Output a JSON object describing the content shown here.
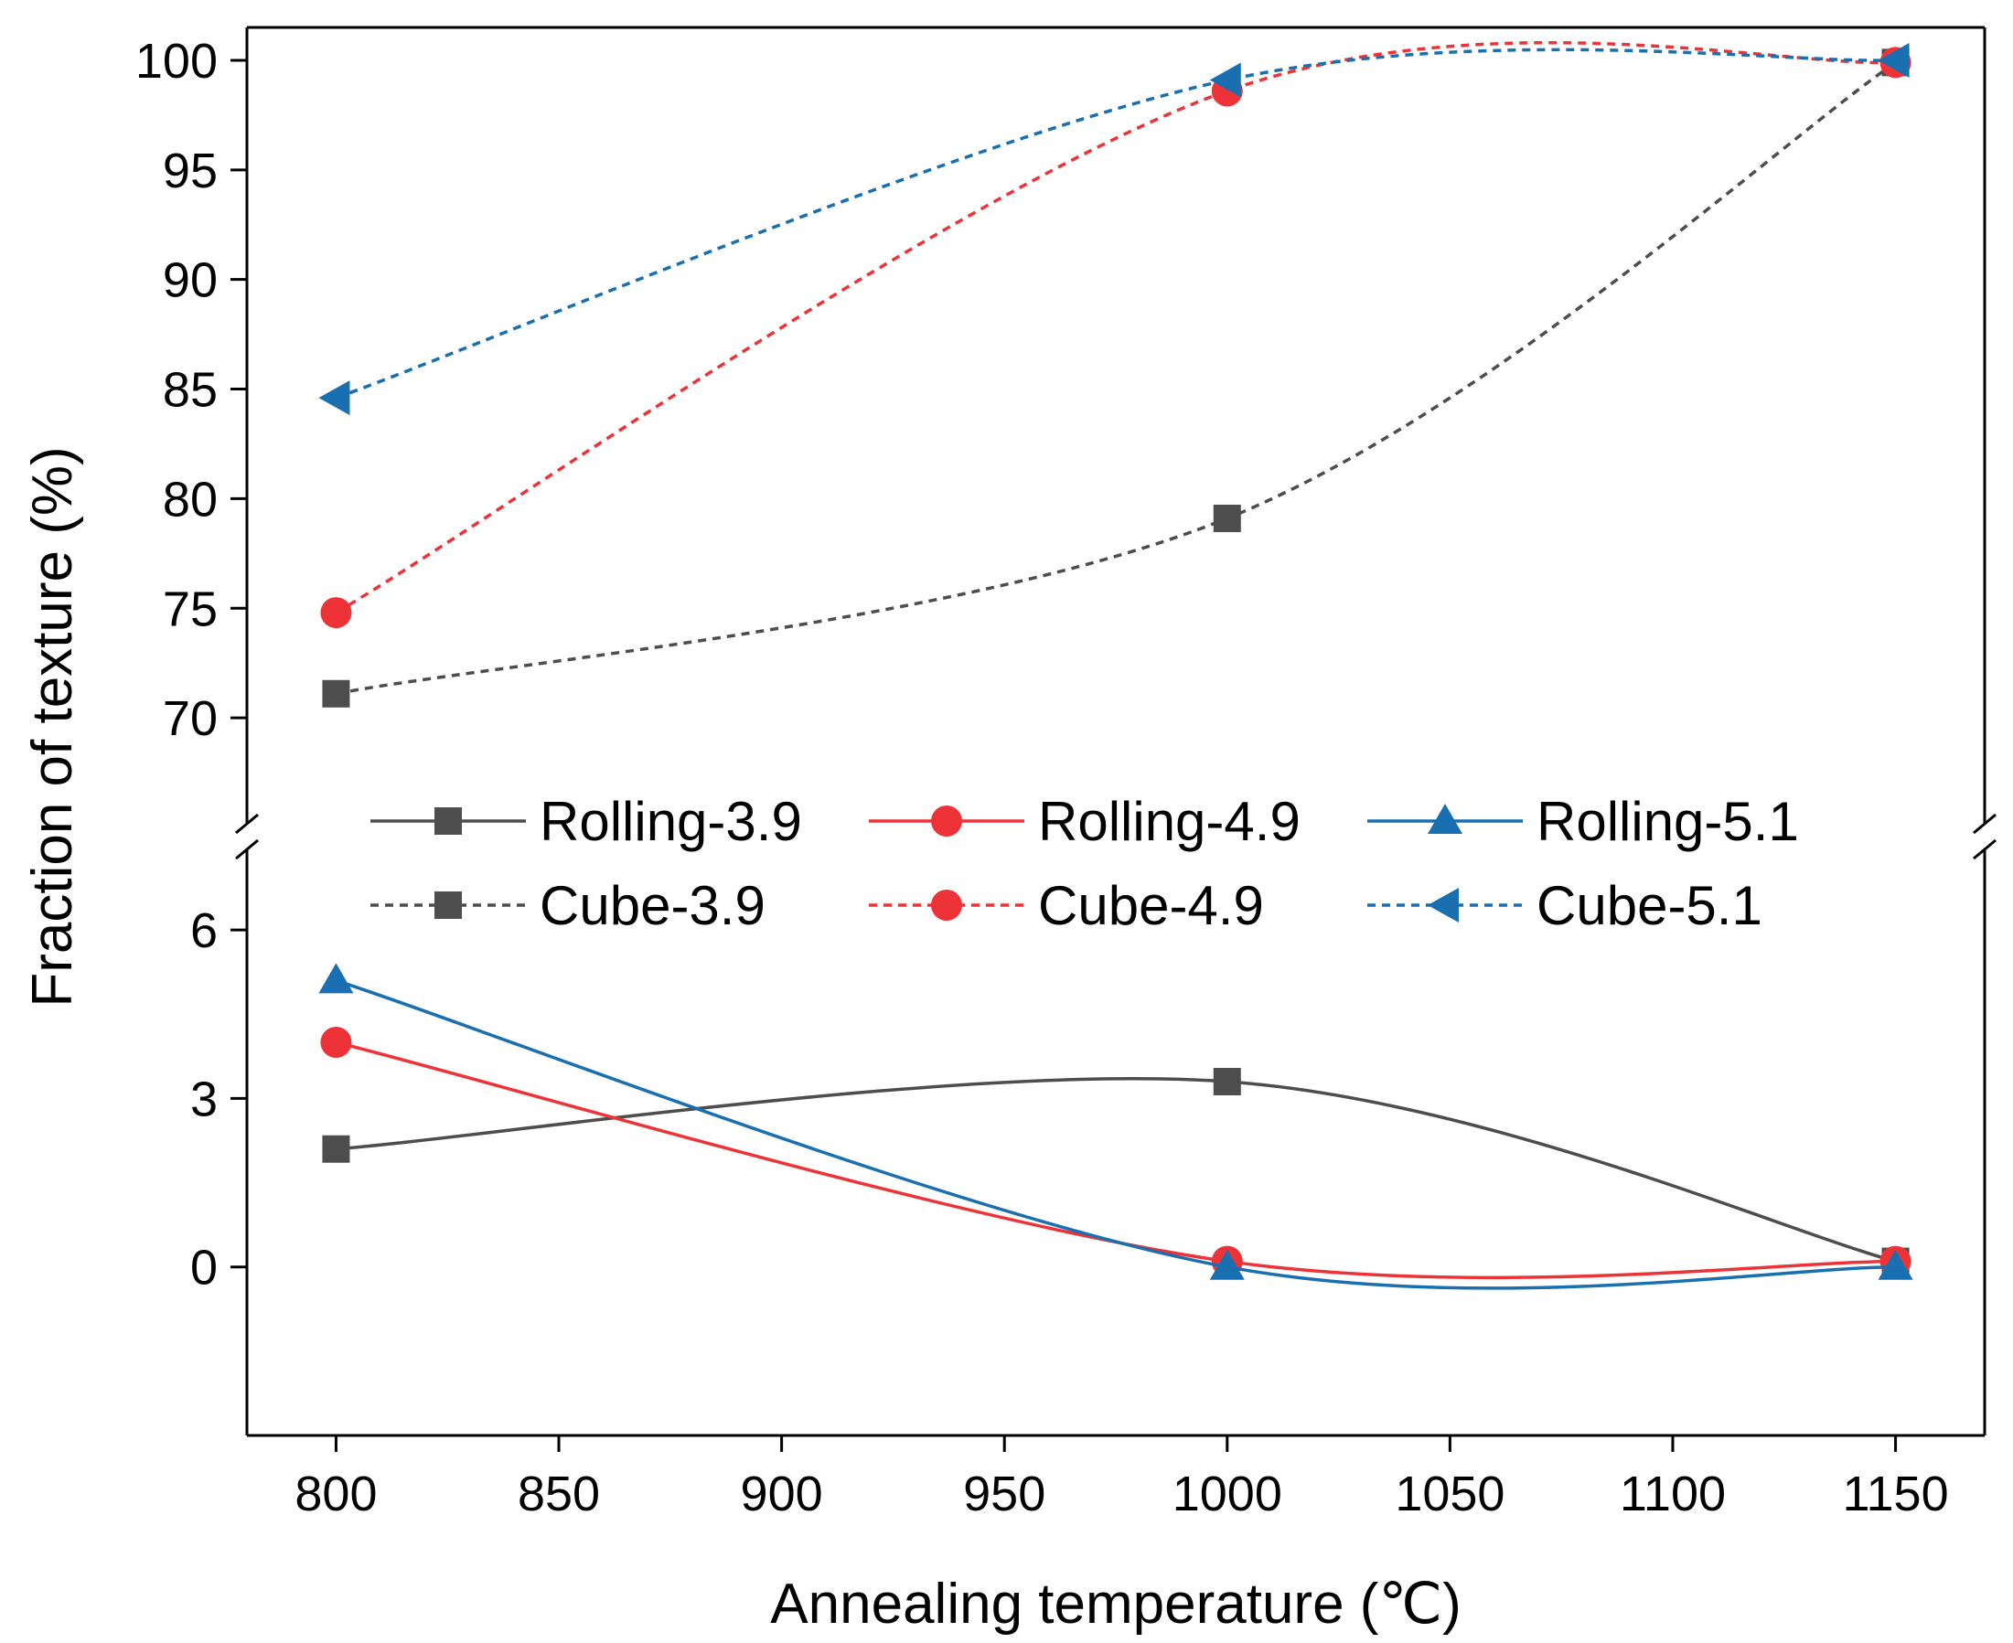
{
  "chart_data": {
    "type": "line",
    "xlabel": "Annealing temperature (℃)",
    "ylabel": "Fraction of texture (%)",
    "xlim": [
      780,
      1170
    ],
    "x_ticks": [
      800,
      850,
      900,
      950,
      1000,
      1050,
      1100,
      1150
    ],
    "y_axis_broken": true,
    "ylim_lower": [
      -3,
      7.5
    ],
    "ylim_upper": [
      65,
      101.5
    ],
    "y_ticks_lower": [
      0,
      3,
      6
    ],
    "y_ticks_upper": [
      70,
      75,
      80,
      85,
      90,
      95,
      100
    ],
    "legend_position": "inside, across the axis break",
    "series": [
      {
        "name": "Rolling-3.9",
        "x": [
          800,
          1000,
          1150
        ],
        "values": [
          2.1,
          3.3,
          0.1
        ],
        "color": "#4d4d4d",
        "dash": "solid",
        "marker": "square"
      },
      {
        "name": "Rolling-4.9",
        "x": [
          800,
          1000,
          1150
        ],
        "values": [
          4.0,
          0.1,
          0.1
        ],
        "color": "#ee3338",
        "dash": "solid",
        "marker": "circle"
      },
      {
        "name": "Rolling-5.1",
        "x": [
          800,
          1000,
          1150
        ],
        "values": [
          5.1,
          0.0,
          0.0
        ],
        "color": "#1a6fb0",
        "dash": "solid",
        "marker": "triangle-up"
      },
      {
        "name": "Cube-3.9",
        "x": [
          800,
          1000,
          1150
        ],
        "values": [
          71.1,
          79.1,
          99.9
        ],
        "color": "#4d4d4d",
        "dash": "dashed",
        "marker": "square"
      },
      {
        "name": "Cube-4.9",
        "x": [
          800,
          1000,
          1150
        ],
        "values": [
          74.8,
          98.6,
          99.9
        ],
        "color": "#ee3338",
        "dash": "dashed",
        "marker": "circle"
      },
      {
        "name": "Cube-5.1",
        "x": [
          800,
          1000,
          1150
        ],
        "values": [
          84.6,
          99.1,
          100.0
        ],
        "color": "#1a6fb0",
        "dash": "dashed",
        "marker": "triangle-left"
      }
    ]
  }
}
